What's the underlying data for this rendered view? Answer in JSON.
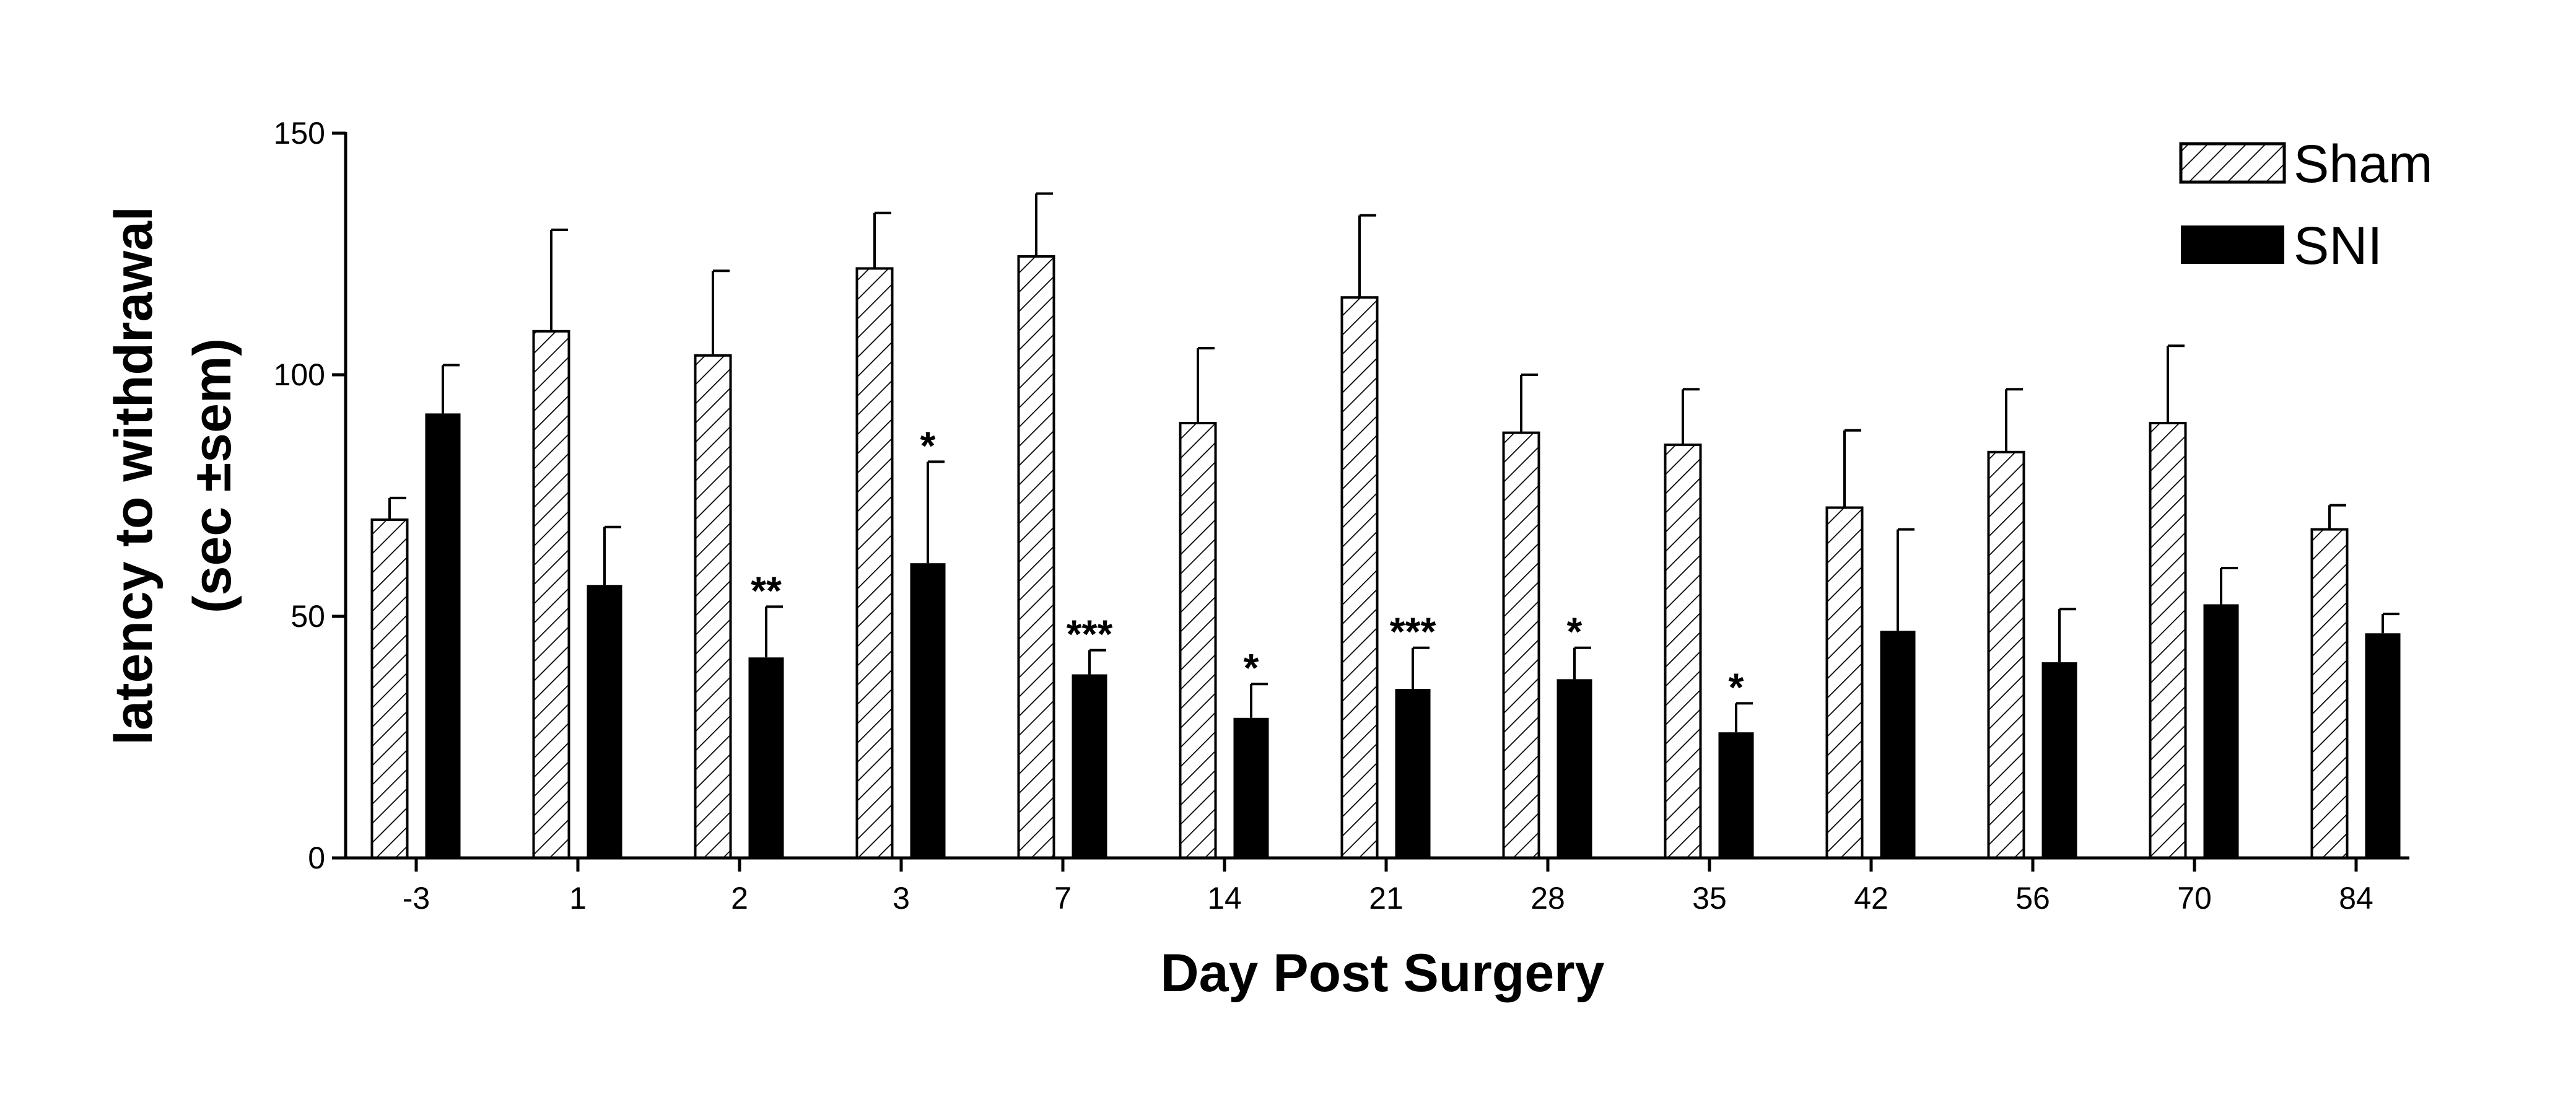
{
  "chart_data": {
    "type": "bar",
    "title": "",
    "xlabel": "Day Post Surgery",
    "ylabel_lines": [
      "latency to withdrawal",
      "(sec ±sem)"
    ],
    "ylim": [
      0,
      150
    ],
    "yticks": [
      0,
      50,
      100,
      150
    ],
    "categories": [
      "-3",
      "1",
      "2",
      "3",
      "7",
      "14",
      "21",
      "28",
      "35",
      "42",
      "56",
      "70",
      "84"
    ],
    "series": [
      {
        "name": "Sham",
        "pattern": "hatched",
        "values": [
          70,
          109,
          104,
          122,
          124.5,
          90,
          116,
          88,
          85.5,
          72.5,
          84,
          90,
          68
        ],
        "errors": [
          4.5,
          21,
          17.5,
          11.5,
          13,
          15.5,
          17,
          12,
          11.5,
          16,
          13,
          16,
          5
        ]
      },
      {
        "name": "SNI",
        "pattern": "solid",
        "values": [
          92,
          56.5,
          41.5,
          61,
          38,
          29,
          35,
          37,
          26,
          47,
          40.5,
          52.5,
          46.5
        ],
        "errors": [
          10,
          12,
          10.5,
          21,
          5,
          7,
          8.5,
          6.5,
          6,
          21,
          11,
          7.5,
          4
        ]
      }
    ],
    "significance": [
      "",
      "",
      "**",
      "*",
      "***",
      "*",
      "***",
      "*",
      "*",
      "",
      "",
      "",
      ""
    ],
    "legend_position": "top-right",
    "grid": false,
    "colors": {
      "bar_fill": "#000000",
      "hatch_stroke": "#000000",
      "background": "#ffffff"
    }
  }
}
